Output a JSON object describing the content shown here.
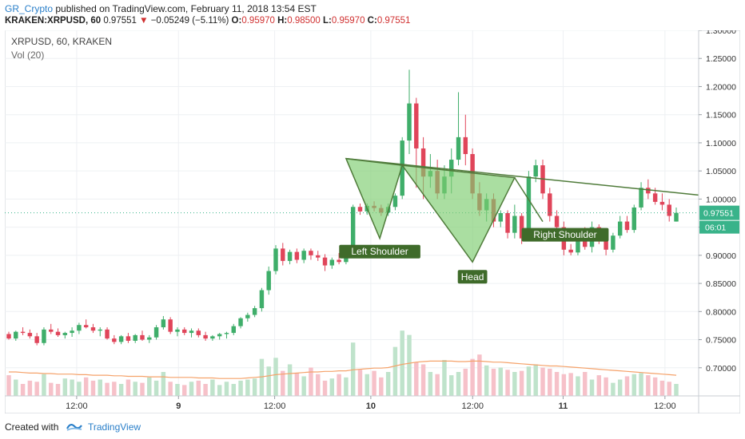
{
  "header": {
    "author": "GR_Crypto",
    "published_text": "published on TradingView.com, February 11, 2018 13:54 EST",
    "symbol_line": "KRAKEN:XRPUSD, 60",
    "last_price": "0.97551",
    "change_arrow": "▼",
    "change": "−0.05249 (−5.11%)",
    "o_label": "O:",
    "o_value": "0.95970",
    "h_label": "H:",
    "h_value": "0.98500",
    "l_label": "L:",
    "l_value": "0.95970",
    "c_label": "C:",
    "c_value": "0.97551"
  },
  "legend": {
    "symbol": "XRPUSD, 60, KRAKEN",
    "volume": "Vol (20)"
  },
  "footer": {
    "created_with": "Created with",
    "brand": "TradingView"
  },
  "colors": {
    "up": "#3fae6a",
    "down": "#e0455a",
    "vol_up": "#bfe3cb",
    "vol_down": "#f6c1c9",
    "pattern_fill": "#7ccd6e",
    "neckline": "#4f7b3a",
    "label_bg": "#3f6b2a",
    "last_price_bg": "#39b38a",
    "ma": "#f5a26a",
    "grid": "#eef0f3"
  },
  "chart_data": {
    "type": "candlestick",
    "ylim": [
      0.65,
      1.3
    ],
    "y_ticks": [
      "1.30000",
      "1.25000",
      "1.20000",
      "1.15000",
      "1.10000",
      "1.05000",
      "1.00000",
      "0.95000",
      "0.90000",
      "0.85000",
      "0.80000",
      "0.75000",
      "0.70000"
    ],
    "x_ticks": [
      "12:00",
      "9",
      "12:00",
      "10",
      "12:00",
      "11",
      "12:00"
    ],
    "last_price_label": "0.97551",
    "countdown_label": "06:01",
    "annotations": [
      "Left Shoulder",
      "Head",
      "Right Shoulder"
    ],
    "candles": [
      [
        0.76,
        0.764,
        0.75,
        0.752
      ],
      [
        0.752,
        0.766,
        0.748,
        0.764
      ],
      [
        0.764,
        0.772,
        0.758,
        0.762
      ],
      [
        0.762,
        0.768,
        0.752,
        0.756
      ],
      [
        0.756,
        0.762,
        0.74,
        0.744
      ],
      [
        0.744,
        0.772,
        0.74,
        0.768
      ],
      [
        0.768,
        0.778,
        0.76,
        0.764
      ],
      [
        0.764,
        0.77,
        0.755,
        0.758
      ],
      [
        0.758,
        0.764,
        0.752,
        0.762
      ],
      [
        0.762,
        0.772,
        0.755,
        0.766
      ],
      [
        0.766,
        0.78,
        0.76,
        0.776
      ],
      [
        0.776,
        0.786,
        0.77,
        0.772
      ],
      [
        0.772,
        0.778,
        0.762,
        0.766
      ],
      [
        0.766,
        0.772,
        0.756,
        0.768
      ],
      [
        0.768,
        0.772,
        0.75,
        0.752
      ],
      [
        0.752,
        0.758,
        0.742,
        0.746
      ],
      [
        0.746,
        0.758,
        0.742,
        0.756
      ],
      [
        0.756,
        0.762,
        0.744,
        0.748
      ],
      [
        0.748,
        0.76,
        0.744,
        0.758
      ],
      [
        0.758,
        0.766,
        0.748,
        0.75
      ],
      [
        0.75,
        0.758,
        0.744,
        0.754
      ],
      [
        0.754,
        0.776,
        0.75,
        0.772
      ],
      [
        0.772,
        0.792,
        0.768,
        0.786
      ],
      [
        0.786,
        0.79,
        0.76,
        0.764
      ],
      [
        0.764,
        0.772,
        0.756,
        0.768
      ],
      [
        0.768,
        0.772,
        0.758,
        0.762
      ],
      [
        0.762,
        0.77,
        0.754,
        0.766
      ],
      [
        0.766,
        0.77,
        0.754,
        0.758
      ],
      [
        0.758,
        0.764,
        0.748,
        0.752
      ],
      [
        0.752,
        0.758,
        0.748,
        0.756
      ],
      [
        0.756,
        0.762,
        0.75,
        0.76
      ],
      [
        0.76,
        0.764,
        0.752,
        0.762
      ],
      [
        0.762,
        0.778,
        0.758,
        0.774
      ],
      [
        0.774,
        0.79,
        0.77,
        0.788
      ],
      [
        0.788,
        0.798,
        0.782,
        0.794
      ],
      [
        0.794,
        0.81,
        0.79,
        0.806
      ],
      [
        0.806,
        0.842,
        0.8,
        0.838
      ],
      [
        0.838,
        0.88,
        0.83,
        0.872
      ],
      [
        0.872,
        0.918,
        0.866,
        0.912
      ],
      [
        0.912,
        0.922,
        0.882,
        0.89
      ],
      [
        0.89,
        0.91,
        0.884,
        0.906
      ],
      [
        0.906,
        0.912,
        0.886,
        0.892
      ],
      [
        0.892,
        0.912,
        0.886,
        0.908
      ],
      [
        0.908,
        0.912,
        0.892,
        0.9
      ],
      [
        0.9,
        0.908,
        0.89,
        0.896
      ],
      [
        0.896,
        0.902,
        0.872,
        0.882
      ],
      [
        0.882,
        0.896,
        0.876,
        0.892
      ],
      [
        0.892,
        0.904,
        0.884,
        0.888
      ],
      [
        0.888,
        0.918,
        0.884,
        0.914
      ],
      [
        0.914,
        0.99,
        0.91,
        0.986
      ],
      [
        0.986,
        0.992,
        0.972,
        0.978
      ],
      [
        0.978,
        0.992,
        0.972,
        0.988
      ],
      [
        0.988,
        0.996,
        0.978,
        0.984
      ],
      [
        0.984,
        0.99,
        0.97,
        0.976
      ],
      [
        0.976,
        0.992,
        0.97,
        0.986
      ],
      [
        0.986,
        1.01,
        0.98,
        1.006
      ],
      [
        1.006,
        1.11,
        1.0,
        1.104
      ],
      [
        1.104,
        1.23,
        1.08,
        1.17
      ],
      [
        1.17,
        1.18,
        1.02,
        1.09
      ],
      [
        1.09,
        1.11,
        1.0,
        1.04
      ],
      [
        1.04,
        1.08,
        1.02,
        1.05
      ],
      [
        1.05,
        1.07,
        1.0,
        1.01
      ],
      [
        1.01,
        1.06,
        1.0,
        1.04
      ],
      [
        1.04,
        1.09,
        1.01,
        1.07
      ],
      [
        1.07,
        1.19,
        1.06,
        1.11
      ],
      [
        1.11,
        1.15,
        1.06,
        1.08
      ],
      [
        1.08,
        1.09,
        1.0,
        1.01
      ],
      [
        1.01,
        1.03,
        0.97,
        0.98
      ],
      [
        0.98,
        1.01,
        0.96,
        1.0
      ],
      [
        1.0,
        1.01,
        0.95,
        0.96
      ],
      [
        0.96,
        0.98,
        0.95,
        0.975
      ],
      [
        0.975,
        0.98,
        0.93,
        0.94
      ],
      [
        0.94,
        0.99,
        0.93,
        0.97
      ],
      [
        0.97,
        0.975,
        0.92,
        0.93
      ],
      [
        0.93,
        1.05,
        0.925,
        1.04
      ],
      [
        1.04,
        1.07,
        1.03,
        1.06
      ],
      [
        1.06,
        1.07,
        1.0,
        1.01
      ],
      [
        1.01,
        1.02,
        0.96,
        0.97
      ],
      [
        0.97,
        0.98,
        0.94,
        0.95
      ],
      [
        0.95,
        0.96,
        0.9,
        0.91
      ],
      [
        0.91,
        0.92,
        0.9,
        0.905
      ],
      [
        0.905,
        0.94,
        0.9,
        0.93
      ],
      [
        0.93,
        0.95,
        0.91,
        0.915
      ],
      [
        0.915,
        0.96,
        0.905,
        0.95
      ],
      [
        0.95,
        0.955,
        0.92,
        0.93
      ],
      [
        0.93,
        0.94,
        0.9,
        0.91
      ],
      [
        0.91,
        0.94,
        0.905,
        0.935
      ],
      [
        0.935,
        0.97,
        0.93,
        0.96
      ],
      [
        0.96,
        0.97,
        0.94,
        0.945
      ],
      [
        0.945,
        0.99,
        0.94,
        0.985
      ],
      [
        0.985,
        1.03,
        0.98,
        1.02
      ],
      [
        1.02,
        1.035,
        1.0,
        1.01
      ],
      [
        1.01,
        1.02,
        0.99,
        0.995
      ],
      [
        0.995,
        1.01,
        0.98,
        0.99
      ],
      [
        0.99,
        1.0,
        0.96,
        0.97
      ],
      [
        0.96,
        0.985,
        0.96,
        0.9755
      ]
    ],
    "volume": [
      38,
      30,
      22,
      28,
      26,
      40,
      24,
      22,
      32,
      30,
      26,
      34,
      28,
      30,
      24,
      26,
      22,
      30,
      26,
      24,
      34,
      28,
      44,
      26,
      22,
      20,
      26,
      28,
      22,
      30,
      20,
      26,
      22,
      28,
      30,
      32,
      68,
      54,
      70,
      46,
      58,
      42,
      36,
      52,
      40,
      28,
      32,
      40,
      34,
      98,
      48,
      40,
      46,
      34,
      44,
      90,
      120,
      112,
      62,
      58,
      44,
      40,
      66,
      38,
      44,
      50,
      68,
      76,
      56,
      50,
      52,
      48,
      44,
      46,
      54,
      58,
      52,
      50,
      44,
      40,
      42,
      36,
      44,
      30,
      38,
      34,
      24,
      30,
      36,
      40,
      42,
      38,
      34,
      28,
      26,
      22
    ],
    "volume_ma": [
      44,
      44,
      43,
      42,
      42,
      41,
      41,
      40,
      40,
      40,
      39,
      39,
      38,
      38,
      38,
      37,
      37,
      36,
      36,
      36,
      35,
      35,
      35,
      34,
      34,
      34,
      34,
      33,
      33,
      33,
      32,
      32,
      32,
      32,
      33,
      34,
      35,
      37,
      39,
      40,
      41,
      42,
      43,
      44,
      44,
      45,
      45,
      46,
      46,
      48,
      49,
      50,
      51,
      51,
      52,
      55,
      58,
      60,
      62,
      63,
      64,
      64,
      64,
      64,
      63,
      63,
      64,
      64,
      63,
      62,
      62,
      61,
      60,
      59,
      58,
      57,
      56,
      55,
      55,
      54,
      53,
      52,
      51,
      50,
      49,
      48,
      47,
      46,
      45,
      44,
      43,
      42,
      41,
      40,
      39,
      38
    ],
    "pattern": {
      "neckline": [
        [
          48,
          1.072
        ],
        [
          82,
          1.028
        ]
      ],
      "left_shoulder": [
        [
          48,
          1.072
        ],
        [
          52.8,
          0.93
        ],
        [
          56,
          1.06
        ]
      ],
      "head": [
        [
          56,
          1.06
        ],
        [
          66,
          0.888
        ],
        [
          72,
          1.038
        ]
      ],
      "right_shoulder": [
        [
          72,
          1.038
        ],
        [
          76,
          0.96
        ]
      ]
    }
  }
}
